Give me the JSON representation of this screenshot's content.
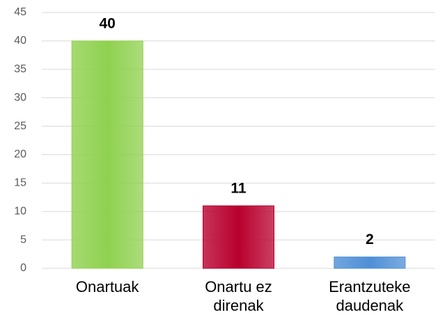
{
  "chart_data": {
    "type": "bar",
    "categories": [
      "Onartuak",
      "Onartu ez direnak",
      "Erantzuteke daudenak"
    ],
    "values": [
      40,
      11,
      2
    ],
    "colors": [
      "#8fd14f",
      "#b8002e",
      "#4f8fd6"
    ],
    "ylim": [
      0,
      45
    ],
    "yticks": [
      0,
      5,
      10,
      15,
      20,
      25,
      30,
      35,
      40,
      45
    ],
    "grid": true
  }
}
